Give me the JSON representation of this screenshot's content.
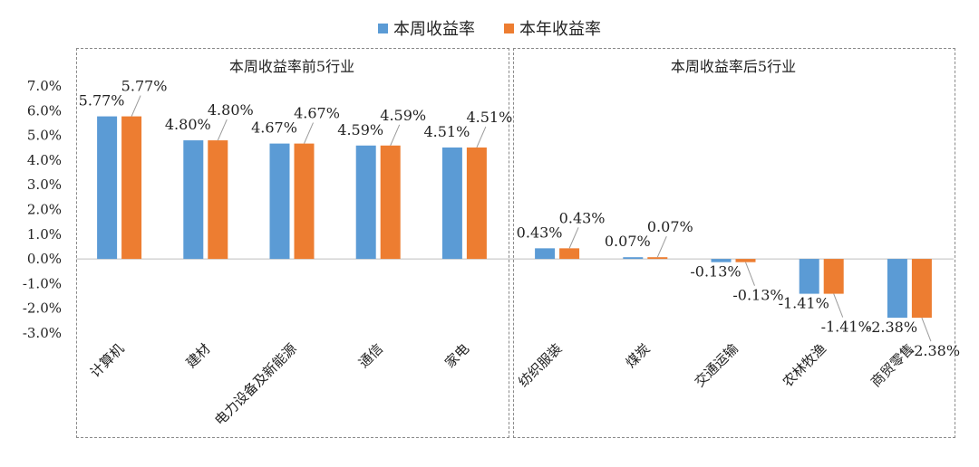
{
  "legend": {
    "items": [
      {
        "label": "本周收益率",
        "color": "#5b9bd5"
      },
      {
        "label": "本年收益率",
        "color": "#ed7d31"
      }
    ]
  },
  "chart_data": {
    "type": "bar",
    "ylim": [
      -3.0,
      7.0
    ],
    "yticks": [
      "7.0%",
      "6.0%",
      "5.0%",
      "4.0%",
      "3.0%",
      "2.0%",
      "1.0%",
      "0.0%",
      "-1.0%",
      "-2.0%",
      "-3.0%"
    ],
    "series_names": [
      "本周收益率",
      "本年收益率"
    ],
    "panels": [
      {
        "title": "本周收益率前5行业",
        "categories": [
          "计算机",
          "建材",
          "电力设备及新能源",
          "通信",
          "家电"
        ],
        "series": [
          {
            "name": "本周收益率",
            "values": [
              5.77,
              4.8,
              4.67,
              4.59,
              4.51
            ],
            "labels": [
              "5.77%",
              "4.80%",
              "4.67%",
              "4.59%",
              "4.51%"
            ]
          },
          {
            "name": "本年收益率",
            "values": [
              5.77,
              4.8,
              4.67,
              4.59,
              4.51
            ],
            "labels": [
              "5.77%",
              "4.80%",
              "4.67%",
              "4.59%",
              "4.51%"
            ]
          }
        ]
      },
      {
        "title": "本周收益率后5行业",
        "categories": [
          "纺织服装",
          "煤炭",
          "交通运输",
          "农林牧渔",
          "商贸零售"
        ],
        "series": [
          {
            "name": "本周收益率",
            "values": [
              0.43,
              0.07,
              -0.13,
              -1.41,
              -2.38
            ],
            "labels": [
              "0.43%",
              "0.07%",
              "-0.13%",
              "-1.41%",
              "-2.38%"
            ]
          },
          {
            "name": "本年收益率",
            "values": [
              0.43,
              0.07,
              -0.13,
              -1.41,
              -2.38
            ],
            "labels": [
              "0.43%",
              "0.07%",
              "-0.13%",
              "-1.41%",
              "-2.38%"
            ]
          }
        ]
      }
    ]
  }
}
